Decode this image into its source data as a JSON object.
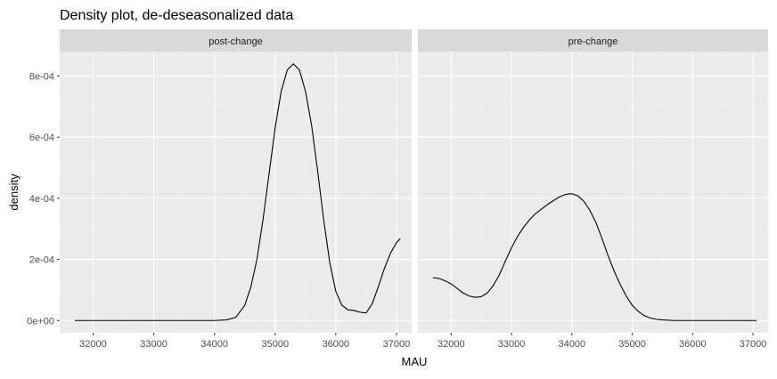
{
  "chart_data": {
    "type": "line",
    "title": "Density plot, de-deseasonalized data",
    "xlabel": "MAU",
    "ylabel": "density",
    "xlim": [
      31450,
      37250
    ],
    "ylim": [
      -4e-05,
      0.00088
    ],
    "x_ticks": [
      32000,
      33000,
      34000,
      35000,
      36000,
      37000
    ],
    "x_tick_labels": [
      "32000",
      "33000",
      "34000",
      "35000",
      "36000",
      "37000"
    ],
    "y_ticks": [
      0,
      0.0002,
      0.0004,
      0.0006,
      0.0008
    ],
    "y_tick_labels": [
      "0e+00",
      "2e-04",
      "4e-04",
      "6e-04",
      "8e-04"
    ],
    "grid": true,
    "line_color": "#000000",
    "panel_color": "#ebebeb",
    "strip_color": "#d9d9d9",
    "panels": [
      {
        "name": "post-change",
        "points": [
          [
            31700,
            0
          ],
          [
            32500,
            0
          ],
          [
            33500,
            0
          ],
          [
            34000,
            0
          ],
          [
            34200,
            2e-06
          ],
          [
            34350,
            1e-05
          ],
          [
            34500,
            5e-05
          ],
          [
            34600,
            0.00011
          ],
          [
            34700,
            0.0002
          ],
          [
            34800,
            0.00033
          ],
          [
            34900,
            0.00048
          ],
          [
            35000,
            0.00063
          ],
          [
            35100,
            0.00075
          ],
          [
            35200,
            0.00082
          ],
          [
            35300,
            0.00084
          ],
          [
            35400,
            0.00082
          ],
          [
            35500,
            0.00075
          ],
          [
            35600,
            0.00064
          ],
          [
            35700,
            0.00049
          ],
          [
            35800,
            0.00033
          ],
          [
            35900,
            0.00019
          ],
          [
            36000,
            9.5e-05
          ],
          [
            36100,
            5e-05
          ],
          [
            36200,
            3.5e-05
          ],
          [
            36300,
            3.3e-05
          ],
          [
            36400,
            2.7e-05
          ],
          [
            36500,
            2.5e-05
          ],
          [
            36600,
            5.5e-05
          ],
          [
            36700,
            0.00011
          ],
          [
            36800,
            0.00017
          ],
          [
            36900,
            0.00022
          ],
          [
            37000,
            0.000255
          ],
          [
            37060,
            0.000268
          ]
        ]
      },
      {
        "name": "pre-change",
        "points": [
          [
            31700,
            0.00014
          ],
          [
            31800,
            0.000138
          ],
          [
            31900,
            0.00013
          ],
          [
            32000,
            0.00012
          ],
          [
            32100,
            0.000105
          ],
          [
            32200,
            9e-05
          ],
          [
            32300,
            8e-05
          ],
          [
            32400,
            7.6e-05
          ],
          [
            32500,
            7.8e-05
          ],
          [
            32600,
            9e-05
          ],
          [
            32700,
            0.000115
          ],
          [
            32800,
            0.00015
          ],
          [
            32900,
            0.000195
          ],
          [
            33000,
            0.000238
          ],
          [
            33100,
            0.000275
          ],
          [
            33200,
            0.000305
          ],
          [
            33300,
            0.00033
          ],
          [
            33400,
            0.00035
          ],
          [
            33500,
            0.000365
          ],
          [
            33600,
            0.00038
          ],
          [
            33700,
            0.000393
          ],
          [
            33800,
            0.000405
          ],
          [
            33900,
            0.000413
          ],
          [
            34000,
            0.000415
          ],
          [
            34100,
            0.000408
          ],
          [
            34200,
            0.00039
          ],
          [
            34300,
            0.00036
          ],
          [
            34400,
            0.00032
          ],
          [
            34500,
            0.000268
          ],
          [
            34600,
            0.000212
          ],
          [
            34700,
            0.000162
          ],
          [
            34800,
            0.000118
          ],
          [
            34900,
            8e-05
          ],
          [
            35000,
            5e-05
          ],
          [
            35100,
            3e-05
          ],
          [
            35200,
            1.6e-05
          ],
          [
            35300,
            8e-06
          ],
          [
            35400,
            4e-06
          ],
          [
            35500,
            2e-06
          ],
          [
            35700,
            0
          ],
          [
            36000,
            0
          ],
          [
            36500,
            0
          ],
          [
            37060,
            0
          ]
        ]
      }
    ]
  }
}
